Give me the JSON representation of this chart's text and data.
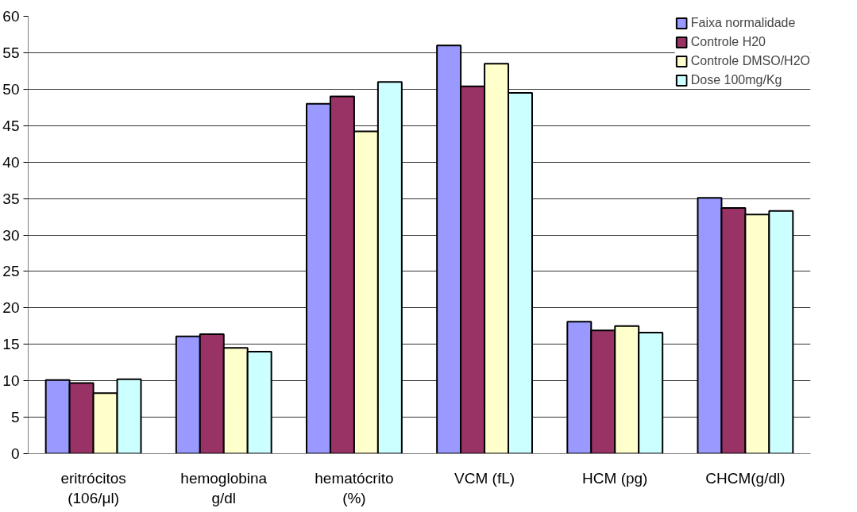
{
  "chart_data": {
    "type": "bar",
    "categories": [
      "eritrócitos\n(106/μl)",
      "hemoglobina\ng/dl",
      "hematócrito\n(%)",
      "VCM (fL)",
      "HCM (pg)",
      "CHCM(g/dl)"
    ],
    "series": [
      {
        "name": "Faixa normalidade",
        "color": "#9999ff",
        "values": [
          10.1,
          16.1,
          48,
          56,
          18.1,
          35.1
        ]
      },
      {
        "name": "Controle H20",
        "color": "#993366",
        "values": [
          9.7,
          16.4,
          49,
          50.4,
          16.9,
          33.7
        ]
      },
      {
        "name": "Controle DMSO/H2O",
        "color": "#ffffcc",
        "values": [
          8.3,
          14.5,
          44.2,
          53.5,
          17.5,
          32.8
        ]
      },
      {
        "name": "Dose 100mg/Kg",
        "color": "#ccffff",
        "values": [
          10.2,
          14.0,
          51,
          49.5,
          16.6,
          33.3
        ]
      }
    ],
    "ylim": [
      0,
      60
    ],
    "yticks": [
      0,
      5,
      10,
      15,
      20,
      25,
      30,
      35,
      40,
      45,
      50,
      55,
      60
    ],
    "grid": "y",
    "legend": "top right"
  }
}
